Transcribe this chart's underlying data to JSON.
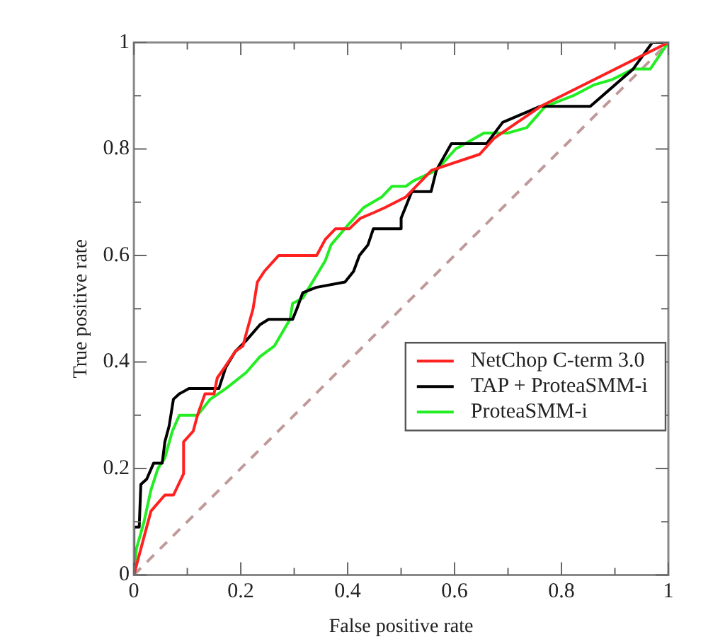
{
  "chart_data": {
    "type": "line",
    "xlabel": "False positive rate",
    "ylabel": "True positive rate",
    "xlim": [
      0,
      1
    ],
    "ylim": [
      0,
      1
    ],
    "xticks": [
      0,
      {
        "value": 0.1,
        "label": null
      },
      0.2,
      {
        "value": 0.3,
        "label": null
      },
      0.4,
      {
        "value": 0.5,
        "label": null
      },
      0.6,
      {
        "value": 0.7,
        "label": null
      },
      0.8,
      {
        "value": 0.9,
        "label": null
      },
      1
    ],
    "yticks": [
      0,
      {
        "value": 0.1,
        "label": null
      },
      0.2,
      {
        "value": 0.3,
        "label": null
      },
      0.4,
      {
        "value": 0.5,
        "label": null
      },
      0.6,
      {
        "value": 0.7,
        "label": null
      },
      0.8,
      {
        "value": 0.9,
        "label": null
      },
      1
    ],
    "legend": "right",
    "marker": "none",
    "series": [
      {
        "name": "NetChop C-term 3.0",
        "color": "#ff2020",
        "x": [
          0,
          0.032,
          0.058,
          0.074,
          0.093,
          0.093,
          0.111,
          0.119,
          0.133,
          0.15,
          0.156,
          0.17,
          0.19,
          0.204,
          0.212,
          0.223,
          0.231,
          0.244,
          0.271,
          0.342,
          0.358,
          0.377,
          0.403,
          0.424,
          0.448,
          0.47,
          0.509,
          0.557,
          0.647,
          0.674,
          0.761,
          1
        ],
        "values": [
          0,
          0.12,
          0.15,
          0.15,
          0.19,
          0.25,
          0.27,
          0.3,
          0.34,
          0.34,
          0.37,
          0.39,
          0.42,
          0.43,
          0.46,
          0.5,
          0.55,
          0.57,
          0.6,
          0.6,
          0.63,
          0.65,
          0.65,
          0.67,
          0.68,
          0.69,
          0.71,
          0.76,
          0.79,
          0.82,
          0.88,
          1
        ]
      },
      {
        "name": "TAP + ProteaSMM-i",
        "color": "#000000",
        "x": [
          0,
          0,
          0.01,
          0.013,
          0.024,
          0.037,
          0.053,
          0.058,
          0.066,
          0.074,
          0.085,
          0.103,
          0.146,
          0.159,
          0.172,
          0.19,
          0.21,
          0.236,
          0.252,
          0.297,
          0.305,
          0.316,
          0.341,
          0.395,
          0.411,
          0.422,
          0.438,
          0.448,
          0.47,
          0.5,
          0.5,
          0.52,
          0.556,
          0.566,
          0.594,
          0.66,
          0.69,
          0.76,
          0.854,
          0.934,
          0.97,
          1
        ],
        "values": [
          0,
          0.09,
          0.09,
          0.17,
          0.18,
          0.21,
          0.21,
          0.25,
          0.28,
          0.33,
          0.34,
          0.35,
          0.35,
          0.35,
          0.39,
          0.42,
          0.44,
          0.47,
          0.48,
          0.48,
          0.5,
          0.53,
          0.54,
          0.55,
          0.57,
          0.6,
          0.62,
          0.65,
          0.65,
          0.65,
          0.67,
          0.72,
          0.72,
          0.76,
          0.81,
          0.81,
          0.85,
          0.88,
          0.88,
          0.95,
          1,
          1
        ]
      },
      {
        "name": "ProteaSMM-i",
        "color": "#22ee22",
        "x": [
          0,
          0.005,
          0.019,
          0.032,
          0.045,
          0.058,
          0.072,
          0.085,
          0.119,
          0.143,
          0.172,
          0.21,
          0.236,
          0.263,
          0.292,
          0.297,
          0.316,
          0.358,
          0.369,
          0.403,
          0.43,
          0.464,
          0.483,
          0.509,
          0.523,
          0.566,
          0.602,
          0.655,
          0.7,
          0.735,
          0.761,
          0.77,
          0.822,
          0.86,
          0.894,
          0.934,
          0.966,
          1
        ],
        "values": [
          0,
          0.05,
          0.1,
          0.16,
          0.2,
          0.22,
          0.27,
          0.3,
          0.3,
          0.33,
          0.35,
          0.38,
          0.41,
          0.43,
          0.48,
          0.51,
          0.52,
          0.59,
          0.62,
          0.66,
          0.69,
          0.71,
          0.73,
          0.73,
          0.74,
          0.76,
          0.8,
          0.83,
          0.83,
          0.84,
          0.87,
          0.88,
          0.9,
          0.92,
          0.93,
          0.95,
          0.95,
          1
        ]
      },
      {
        "color": "#c09a9a",
        "line_style": "dashed",
        "x": [
          0,
          1
        ],
        "values": [
          0,
          1
        ]
      }
    ]
  }
}
